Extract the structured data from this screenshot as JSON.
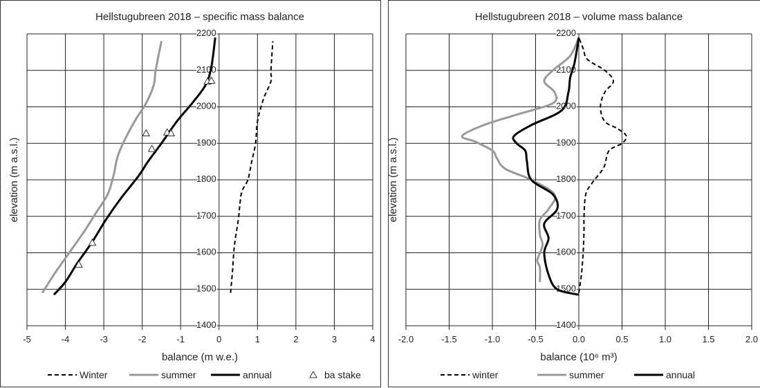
{
  "chart_data": [
    {
      "type": "line",
      "title": "Hellstugubreen   2018 –  specific mass balance",
      "xlabel": "balance (m w.e.)",
      "ylabel": "elevation (m a.s.l.)",
      "xlim": [
        -5,
        4
      ],
      "ylim": [
        1400,
        2200
      ],
      "x_ticks": [
        "-5",
        "-4",
        "-3",
        "-2",
        "-1",
        "0",
        "1",
        "2",
        "3",
        "4"
      ],
      "y_ticks": [
        "1400",
        "1500",
        "1600",
        "1700",
        "1800",
        "1900",
        "2000",
        "2100",
        "2200"
      ],
      "grid": true,
      "legend_position": "bottom",
      "series": [
        {
          "name": "Winter",
          "style": "dashed",
          "color": "#000000",
          "points": [
            [
              0.3,
              1490
            ],
            [
              0.35,
              1550
            ],
            [
              0.4,
              1620
            ],
            [
              0.5,
              1690
            ],
            [
              0.55,
              1740
            ],
            [
              0.6,
              1770
            ],
            [
              0.75,
              1800
            ],
            [
              0.85,
              1850
            ],
            [
              0.95,
              1900
            ],
            [
              1.0,
              1960
            ],
            [
              1.15,
              2020
            ],
            [
              1.35,
              2070
            ],
            [
              1.35,
              2100
            ],
            [
              1.4,
              2180
            ]
          ]
        },
        {
          "name": "summer",
          "style": "solid",
          "color": "#999999",
          "points": [
            [
              -4.6,
              1490
            ],
            [
              -4.3,
              1540
            ],
            [
              -3.9,
              1600
            ],
            [
              -3.5,
              1660
            ],
            [
              -3.2,
              1710
            ],
            [
              -2.9,
              1760
            ],
            [
              -2.75,
              1810
            ],
            [
              -2.65,
              1860
            ],
            [
              -2.5,
              1900
            ],
            [
              -2.2,
              1960
            ],
            [
              -1.9,
              2010
            ],
            [
              -1.7,
              2060
            ],
            [
              -1.65,
              2100
            ],
            [
              -1.5,
              2180
            ]
          ]
        },
        {
          "name": "annual",
          "style": "solid",
          "color": "#000000",
          "points": [
            [
              -4.3,
              1485
            ],
            [
              -4.0,
              1520
            ],
            [
              -3.7,
              1570
            ],
            [
              -3.3,
              1630
            ],
            [
              -2.95,
              1690
            ],
            [
              -2.55,
              1750
            ],
            [
              -2.1,
              1810
            ],
            [
              -1.85,
              1850
            ],
            [
              -1.5,
              1900
            ],
            [
              -1.1,
              1960
            ],
            [
              -0.7,
              2010
            ],
            [
              -0.35,
              2060
            ],
            [
              -0.2,
              2110
            ],
            [
              -0.1,
              2190
            ]
          ]
        },
        {
          "name": "ba stake",
          "style": "marker",
          "color": "#000000",
          "points": [
            [
              -3.65,
              1568
            ],
            [
              -3.3,
              1628
            ],
            [
              -1.75,
              1885
            ],
            [
              -1.9,
              1928
            ],
            [
              -1.35,
              1930
            ],
            [
              -1.25,
              1928
            ],
            [
              -0.3,
              2070
            ],
            [
              -0.2,
              2072
            ]
          ]
        }
      ]
    },
    {
      "type": "line",
      "title": "Hellstugubreen   2018 –  volume mass balance",
      "xlabel": "balance (10⁶ m³)",
      "ylabel": "elevation (m a.s.l.)",
      "xlim": [
        -2.0,
        2.0
      ],
      "ylim": [
        1400,
        2200
      ],
      "x_ticks": [
        "-2.0",
        "-1.5",
        "-1.0",
        "-0.5",
        "0.0",
        "0.5",
        "1.0",
        "1.5",
        "2.0"
      ],
      "y_ticks": [
        "1400",
        "1500",
        "1600",
        "1700",
        "1800",
        "1900",
        "2000",
        "2100",
        "2200"
      ],
      "grid": true,
      "legend_position": "bottom",
      "series": [
        {
          "name": "winter",
          "style": "dashed",
          "color": "#000000",
          "points": [
            [
              0.0,
              1490
            ],
            [
              0.03,
              1540
            ],
            [
              0.05,
              1600
            ],
            [
              0.06,
              1660
            ],
            [
              0.06,
              1700
            ],
            [
              0.08,
              1760
            ],
            [
              0.15,
              1790
            ],
            [
              0.25,
              1820
            ],
            [
              0.3,
              1840
            ],
            [
              0.35,
              1880
            ],
            [
              0.5,
              1900
            ],
            [
              0.55,
              1920
            ],
            [
              0.45,
              1940
            ],
            [
              0.3,
              1960
            ],
            [
              0.25,
              2000
            ],
            [
              0.3,
              2040
            ],
            [
              0.4,
              2070
            ],
            [
              0.3,
              2100
            ],
            [
              0.1,
              2130
            ],
            [
              0.05,
              2160
            ],
            [
              0.0,
              2190
            ]
          ]
        },
        {
          "name": "summer",
          "style": "solid",
          "color": "#999999",
          "points": [
            [
              -0.45,
              1520
            ],
            [
              -0.45,
              1560
            ],
            [
              -0.48,
              1580
            ],
            [
              -0.42,
              1620
            ],
            [
              -0.45,
              1650
            ],
            [
              -0.45,
              1690
            ],
            [
              -0.35,
              1720
            ],
            [
              -0.28,
              1760
            ],
            [
              -0.55,
              1800
            ],
            [
              -0.85,
              1830
            ],
            [
              -0.95,
              1860
            ],
            [
              -1.0,
              1880
            ],
            [
              -1.2,
              1905
            ],
            [
              -1.35,
              1920
            ],
            [
              -1.1,
              1950
            ],
            [
              -0.7,
              1980
            ],
            [
              -0.3,
              2010
            ],
            [
              -0.28,
              2040
            ],
            [
              -0.4,
              2070
            ],
            [
              -0.3,
              2100
            ],
            [
              -0.1,
              2140
            ],
            [
              0.0,
              2190
            ]
          ]
        },
        {
          "name": "annual",
          "style": "solid",
          "color": "#000000",
          "points": [
            [
              0.0,
              1485
            ],
            [
              -0.25,
              1500
            ],
            [
              -0.35,
              1540
            ],
            [
              -0.4,
              1600
            ],
            [
              -0.35,
              1640
            ],
            [
              -0.4,
              1680
            ],
            [
              -0.25,
              1720
            ],
            [
              -0.3,
              1760
            ],
            [
              -0.55,
              1800
            ],
            [
              -0.6,
              1850
            ],
            [
              -0.62,
              1880
            ],
            [
              -0.72,
              1900
            ],
            [
              -0.75,
              1920
            ],
            [
              -0.55,
              1950
            ],
            [
              -0.2,
              1990
            ],
            [
              -0.12,
              2040
            ],
            [
              -0.1,
              2080
            ],
            [
              -0.05,
              2120
            ],
            [
              0.0,
              2190
            ]
          ]
        }
      ]
    }
  ]
}
